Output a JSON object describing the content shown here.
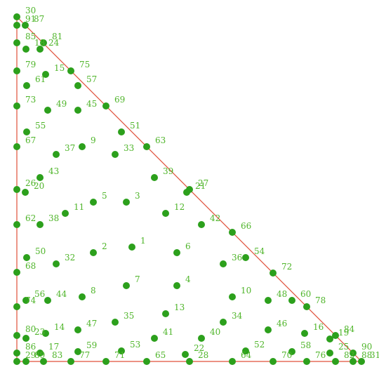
{
  "chart_data": {
    "type": "scatter",
    "point_labels": [
      "1",
      "2",
      "3",
      "4",
      "5",
      "6",
      "7",
      "8",
      "9",
      "10",
      "11",
      "12",
      "13",
      "14",
      "15",
      "16",
      "17",
      "18",
      "19",
      "20",
      "21",
      "22",
      "23",
      "24",
      "25",
      "26",
      "27",
      "28",
      "29",
      "30",
      "31",
      "32",
      "33",
      "34",
      "35",
      "36",
      "37",
      "38",
      "39",
      "40",
      "41",
      "42",
      "43",
      "44",
      "45",
      "46",
      "47",
      "48",
      "49",
      "50",
      "51",
      "52",
      "53",
      "54",
      "55",
      "56",
      "57",
      "58",
      "59",
      "60",
      "61",
      "62",
      "63",
      "64",
      "65",
      "66",
      "67",
      "68",
      "69",
      "70",
      "71",
      "72",
      "73",
      "74",
      "75",
      "76",
      "77",
      "78",
      "79",
      "80",
      "81",
      "82",
      "83",
      "84",
      "85",
      "86",
      "87",
      "88",
      "89",
      "90",
      "91"
    ],
    "x": [
      164,
      109,
      156,
      228,
      109,
      228,
      156,
      93,
      93,
      307,
      69,
      212,
      212,
      41,
      41,
      410,
      33,
      13,
      446,
      12,
      242,
      240,
      13,
      33,
      446,
      0,
      246,
      246,
      0,
      0,
      491,
      56,
      140,
      294,
      140,
      294,
      56,
      33,
      196,
      263,
      196,
      263,
      33,
      44,
      87,
      358,
      87,
      358,
      44,
      14,
      149,
      326,
      149,
      326,
      14,
      13,
      87,
      392,
      87,
      392,
      14,
      0,
      185,
      307,
      185,
      307,
      0,
      0,
      127,
      365,
      127,
      365,
      0,
      0,
      77,
      413,
      77,
      413,
      0,
      0,
      38,
      454,
      38,
      454,
      0,
      0,
      12,
      479,
      13,
      479,
      0
    ],
    "values": [
      163,
      155,
      227,
      108,
      227,
      155,
      108,
      92,
      306,
      92,
      211,
      211,
      68,
      40,
      409,
      40,
      12,
      445,
      32,
      241,
      241,
      10,
      33,
      445,
      12,
      245,
      245,
      0,
      0,
      491,
      0,
      139,
      295,
      56,
      56,
      139,
      295,
      195,
      262,
      33,
      33,
      195,
      262,
      87,
      358,
      45,
      45,
      87,
      358,
      148,
      327,
      15,
      15,
      148,
      327,
      87,
      393,
      14,
      14,
      87,
      393,
      195,
      306,
      0,
      0,
      184,
      306,
      127,
      364,
      0,
      0,
      126,
      364,
      78,
      414,
      0,
      0,
      78,
      414,
      37,
      454,
      0,
      0,
      37,
      454,
      12,
      479,
      0,
      0,
      12,
      479
    ],
    "xlim": [
      0,
      491
    ],
    "ylim": [
      0,
      491
    ],
    "color": "#2ca01c",
    "label_color": "#4fb52a"
  }
}
